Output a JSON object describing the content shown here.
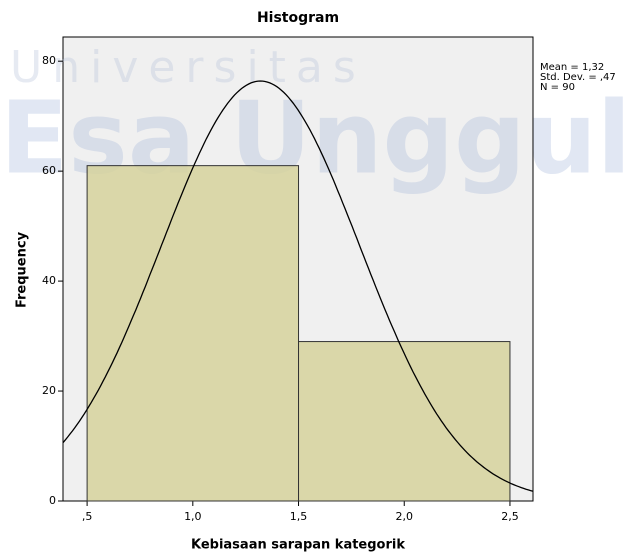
{
  "chart_data": {
    "type": "histogram",
    "title": "Histogram",
    "x_label": "Kebiasaan sarapan kategorik",
    "y_label": "Frequency",
    "bins": [
      0.5,
      1.5,
      2.5
    ],
    "values": [
      61,
      29
    ],
    "color": "#d6d29c",
    "curve_color": "#000000",
    "xlim": [
      0.386,
      2.609
    ],
    "ylim": [
      0,
      84.4
    ],
    "xticks": [
      {
        "value": 0.5,
        "label": ",5"
      },
      {
        "value": 1.0,
        "label": "1,0"
      },
      {
        "value": 1.5,
        "label": "1,5"
      },
      {
        "value": 2.0,
        "label": "2,0"
      },
      {
        "value": 2.5,
        "label": "2,5"
      }
    ],
    "yticks": [
      0,
      20,
      40,
      60,
      80
    ],
    "stats": [
      {
        "value": 1.32,
        "label": "Mean = 1,32"
      },
      {
        "value": 0.47,
        "label": "Std. Dev. = ,47"
      },
      {
        "value": 90,
        "label": "N = 90"
      }
    ],
    "watermark": [
      "Universitas",
      "Esa Unggul"
    ]
  }
}
